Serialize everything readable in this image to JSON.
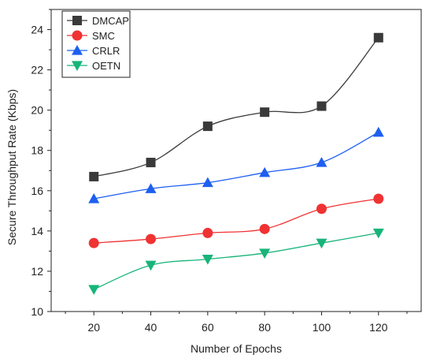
{
  "chart_data": {
    "type": "line",
    "title": "",
    "xlabel": "Number of Epochs",
    "ylabel": "Secure Throughput Rate (Kbps)",
    "x": [
      20,
      40,
      60,
      80,
      100,
      120
    ],
    "xlim": [
      5,
      135
    ],
    "ylim": [
      10,
      25
    ],
    "xticks": [
      "20",
      "40",
      "60",
      "80",
      "100",
      "120"
    ],
    "yticks": [
      "10",
      "12",
      "14",
      "16",
      "18",
      "20",
      "22",
      "24"
    ],
    "grid": false,
    "legend_position": "top-left",
    "series": [
      {
        "name": "DMCAP",
        "values": [
          16.7,
          17.4,
          19.2,
          19.9,
          20.2,
          23.6
        ],
        "color": "#3a3a3a",
        "marker": "square"
      },
      {
        "name": "SMC",
        "values": [
          13.4,
          13.6,
          13.9,
          14.1,
          15.1,
          15.6
        ],
        "color": "#f03232",
        "marker": "circle"
      },
      {
        "name": "CRLR",
        "values": [
          15.6,
          16.1,
          16.4,
          16.9,
          17.4,
          18.9
        ],
        "color": "#1e5ff0",
        "marker": "triangle-up"
      },
      {
        "name": "OETN",
        "values": [
          11.1,
          12.3,
          12.6,
          12.9,
          13.4,
          13.9
        ],
        "color": "#18b47a",
        "marker": "triangle-down"
      }
    ]
  }
}
